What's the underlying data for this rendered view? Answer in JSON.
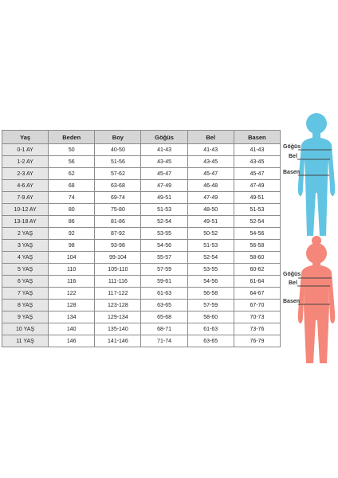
{
  "size_table": {
    "headers": [
      "Yaş",
      "Beden",
      "Boy",
      "Göğüs",
      "Bel",
      "Basen"
    ],
    "rows": [
      [
        "0-1 AY",
        "50",
        "40-50",
        "41-43",
        "41-43",
        "41-43"
      ],
      [
        "1-2 AY",
        "56",
        "51-56",
        "43-45",
        "43-45",
        "43-45"
      ],
      [
        "2-3 AY",
        "62",
        "57-62",
        "45-47",
        "45-47",
        "45-47"
      ],
      [
        "4-6 AY",
        "68",
        "63-68",
        "47-49",
        "46-48",
        "47-49"
      ],
      [
        "7-9 AY",
        "74",
        "69-74",
        "49-51",
        "47-49",
        "49-51"
      ],
      [
        "10-12 AY",
        "80",
        "75-80",
        "51-53",
        "48-50",
        "51-53"
      ],
      [
        "13-18 AY",
        "86",
        "81-86",
        "52-54",
        "49-51",
        "52-54"
      ],
      [
        "2 YAŞ",
        "92",
        "87-92",
        "53-55",
        "50-52",
        "54-56"
      ],
      [
        "3 YAŞ",
        "98",
        "93-98",
        "54-56",
        "51-53",
        "56-58"
      ],
      [
        "4 YAŞ",
        "104",
        "99-104",
        "55-57",
        "52-54",
        "58-60"
      ],
      [
        "5 YAŞ",
        "110",
        "105-110",
        "57-59",
        "53-55",
        "60-62"
      ],
      [
        "6 YAŞ",
        "116",
        "111-116",
        "59-61",
        "54-56",
        "61-64"
      ],
      [
        "7 YAŞ",
        "122",
        "117-122",
        "61-63",
        "56-58",
        "64-67"
      ],
      [
        "8 YAŞ",
        "128",
        "123-128",
        "63-65",
        "57-59",
        "67-70"
      ],
      [
        "9 YAŞ",
        "134",
        "129-134",
        "65-68",
        "58-60",
        "70-73"
      ],
      [
        "10 YAŞ",
        "140",
        "135-140",
        "68-71",
        "61-63",
        "73-76"
      ],
      [
        "11 YAŞ",
        "146",
        "141-146",
        "71-74",
        "63-65",
        "76-79"
      ]
    ]
  },
  "figures": {
    "boy": {
      "color": "#62c4e3",
      "labels": {
        "chest": "Göğüs",
        "waist": "Bel",
        "hips": "Basen"
      }
    },
    "girl": {
      "color": "#f4877a",
      "labels": {
        "chest": "Göğüs",
        "waist": "Bel",
        "hips": "Basen"
      }
    }
  },
  "colors": {
    "header_bg": "#d6d6d6",
    "age_column_bg": "#e6e6e6",
    "measure_line": "#444444"
  }
}
